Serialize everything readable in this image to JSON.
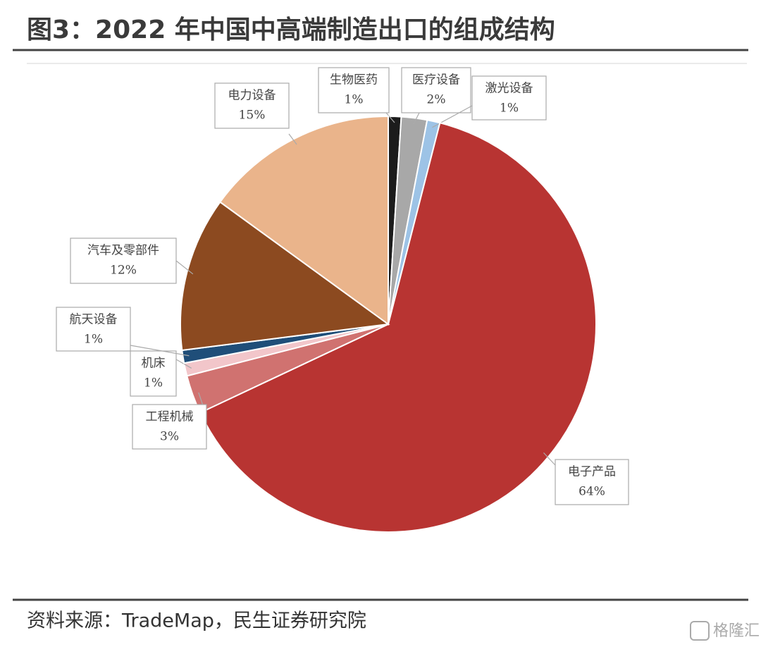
{
  "chart_data": {
    "type": "pie",
    "title": "图3：2022 年中国中高端制造出口的组成结构",
    "source": "资料来源：TradeMap，民生证券研究院",
    "watermark": "格隆汇",
    "categories": [
      "生物医药",
      "医疗设备",
      "激光设备",
      "电子产品",
      "工程机械",
      "机床",
      "航天设备",
      "汽车及零部件",
      "电力设备"
    ],
    "values": [
      1,
      2,
      1,
      64,
      3,
      1,
      1,
      12,
      15
    ],
    "value_labels": [
      "1%",
      "2%",
      "1%",
      "64%",
      "3%",
      "1%",
      "1%",
      "12%",
      "15%"
    ],
    "colors": [
      "#1c1c1c",
      "#a8a8a8",
      "#9dc3e6",
      "#b83432",
      "#d07270",
      "#f2c6ca",
      "#1f4e79",
      "#8c4a20",
      "#eab48b"
    ]
  }
}
